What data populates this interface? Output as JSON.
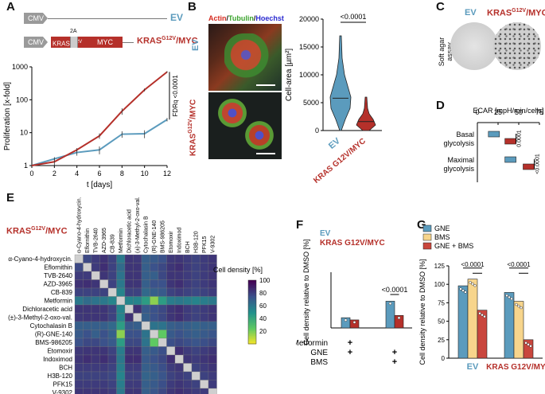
{
  "panels": {
    "a": "A",
    "b": "B",
    "c": "C",
    "d": "D",
    "e": "E",
    "f": "F",
    "g": "G"
  },
  "colors": {
    "ev": "#5b9bbd",
    "kras": "#b5302a",
    "bms": "#f7d58c",
    "gne_bms": "#c9463d",
    "gne": "#5b9bbd"
  },
  "construct": {
    "cmv": "CMV",
    "ev": "EV",
    "kras": "KRAS",
    "kras_sup": "G12V",
    "t2a": "2A",
    "myc": "MYC",
    "kras_myc_label_a": "KRAS",
    "kras_myc_sup": "G12V",
    "kras_myc_label_b": "/MYC"
  },
  "microscopy": {
    "stain_actin": "Actin",
    "stain_tubulin": "Tubulin",
    "stain_hoechst": "Hoechst",
    "ev": "EV",
    "kras_a": "KRAS",
    "kras_sup": "G12V",
    "kras_b": "/MYC"
  },
  "soft_agar": {
    "ev": "EV",
    "kras_a": "KRAS",
    "kras_sup": "G12V",
    "kras_b": "/MYC",
    "side_label": "Soft agar assay"
  },
  "heatmap_title": {
    "a": "KRAS",
    "sup": "G12V",
    "b": "/MYC"
  },
  "chart_data": [
    {
      "id": "A",
      "type": "line",
      "xlabel": "t [days]",
      "ylabel": "Proliferation [x-fold]",
      "yscale": "log",
      "xlim": [
        0,
        12
      ],
      "ylim": [
        1,
        1000
      ],
      "xticks": [
        0,
        2,
        4,
        6,
        8,
        10,
        12
      ],
      "yticks": [
        1,
        10,
        100,
        1000
      ],
      "annotation": "FDRq <0.0001",
      "series": [
        {
          "name": "EV",
          "x": [
            0,
            2,
            4,
            6,
            8,
            10,
            12
          ],
          "y": [
            1,
            1.6,
            2.5,
            3,
            9,
            9.3,
            25
          ],
          "err": [
            0,
            0.2,
            0.5,
            0.8,
            2,
            2.5,
            3
          ]
        },
        {
          "name": "KRAS G12V/MYC",
          "x": [
            0,
            2,
            4,
            6,
            8,
            10,
            12
          ],
          "y": [
            1,
            1.3,
            3,
            8,
            45,
            200,
            700
          ],
          "err": [
            0,
            0.3,
            0.4,
            1.5,
            10,
            20,
            40
          ]
        }
      ]
    },
    {
      "id": "B",
      "type": "violin",
      "ylabel": "Cell-area [µm²]",
      "ylim": [
        0,
        20000
      ],
      "yticks": [
        0,
        5000,
        10000,
        15000,
        20000
      ],
      "yticklabels": [
        "0",
        "5000",
        "10000",
        "15000",
        "20000"
      ],
      "categories": [
        "EV",
        "KRAS G12V/MYC"
      ],
      "medians": [
        5800,
        1600
      ],
      "pvalue": "<0.0001"
    },
    {
      "id": "D",
      "type": "box",
      "title": "ECAR [mpH/min/cells]",
      "xlim": [
        0,
        75
      ],
      "xticks": [
        0,
        25,
        50,
        75
      ],
      "categories": [
        "Basal glycolysis",
        "Maximal glycolysis"
      ],
      "category_lines": [
        [
          "Basal",
          "glycolysis"
        ],
        [
          "Maximal",
          "glycolysis"
        ]
      ],
      "series": [
        {
          "name": "EV",
          "values": [
            20,
            40
          ]
        },
        {
          "name": "KRAS G12V/MYC",
          "values": [
            40,
            62
          ]
        }
      ],
      "pvalues": [
        "0.0001",
        "<0.0001"
      ]
    },
    {
      "id": "E",
      "type": "heatmap",
      "legend_title": "Cell density [%]",
      "scale": [
        0,
        100
      ],
      "scale_ticks": [
        20,
        40,
        60,
        80,
        100
      ],
      "labels": [
        "α-Cyano-4-hydroxycin.",
        "Eflornithin",
        "TVB-2640",
        "AZD-3965",
        "CB-839",
        "Metformin",
        "Dichloracetic acid",
        "(±)-3-Methyl-2-oxo-val.",
        "Cytochalasin B",
        "(R)-GNE-140",
        "BMS-986205",
        "Etomoxir",
        "Indoximod",
        "BCH",
        "H3B-120",
        "PFK15",
        "V-9302"
      ],
      "values": [
        [
          100,
          78,
          82,
          85,
          80,
          60,
          84,
          83,
          70,
          72,
          75,
          83,
          84,
          82,
          80,
          82,
          84
        ],
        [
          78,
          100,
          82,
          86,
          80,
          65,
          84,
          84,
          70,
          75,
          78,
          84,
          86,
          82,
          80,
          82,
          84
        ],
        [
          82,
          82,
          100,
          84,
          80,
          62,
          84,
          84,
          70,
          70,
          78,
          84,
          84,
          82,
          80,
          82,
          84
        ],
        [
          85,
          86,
          84,
          100,
          80,
          60,
          84,
          84,
          70,
          75,
          75,
          84,
          86,
          82,
          80,
          82,
          84
        ],
        [
          80,
          80,
          80,
          80,
          100,
          55,
          80,
          80,
          66,
          70,
          72,
          80,
          82,
          80,
          78,
          80,
          82
        ],
        [
          60,
          65,
          62,
          60,
          55,
          100,
          55,
          55,
          45,
          18,
          45,
          58,
          60,
          58,
          55,
          58,
          60
        ],
        [
          84,
          84,
          84,
          84,
          80,
          55,
          100,
          85,
          72,
          75,
          78,
          84,
          86,
          82,
          80,
          82,
          84
        ],
        [
          83,
          84,
          84,
          84,
          80,
          55,
          85,
          100,
          70,
          75,
          78,
          84,
          86,
          82,
          80,
          82,
          84
        ],
        [
          70,
          70,
          70,
          70,
          66,
          45,
          72,
          70,
          100,
          62,
          62,
          70,
          72,
          70,
          68,
          70,
          70
        ],
        [
          72,
          75,
          70,
          75,
          70,
          18,
          75,
          75,
          62,
          100,
          25,
          72,
          75,
          72,
          70,
          72,
          74
        ],
        [
          75,
          78,
          78,
          75,
          72,
          45,
          78,
          78,
          62,
          25,
          100,
          76,
          78,
          76,
          74,
          76,
          78
        ],
        [
          83,
          84,
          84,
          84,
          80,
          58,
          84,
          84,
          70,
          72,
          76,
          100,
          86,
          82,
          80,
          82,
          84
        ],
        [
          84,
          86,
          84,
          86,
          82,
          60,
          86,
          86,
          72,
          75,
          78,
          86,
          100,
          84,
          82,
          84,
          86
        ],
        [
          82,
          82,
          82,
          82,
          80,
          58,
          82,
          82,
          70,
          72,
          76,
          82,
          84,
          100,
          80,
          82,
          84
        ],
        [
          80,
          80,
          80,
          80,
          78,
          55,
          80,
          80,
          68,
          70,
          74,
          80,
          82,
          80,
          100,
          80,
          82
        ],
        [
          82,
          82,
          82,
          82,
          80,
          58,
          82,
          82,
          70,
          72,
          76,
          82,
          84,
          82,
          80,
          100,
          82
        ],
        [
          84,
          84,
          84,
          84,
          82,
          60,
          84,
          84,
          70,
          74,
          78,
          84,
          86,
          84,
          82,
          82,
          100
        ]
      ]
    },
    {
      "id": "F",
      "type": "bar",
      "ylabel": "Cell density relative to DMSO [%]",
      "ylim": [
        0,
        120
      ],
      "yticks": [
        0,
        25,
        50,
        75,
        100,
        125
      ],
      "series": [
        {
          "name": "EV",
          "values": [
            23,
            60
          ]
        },
        {
          "name": "KRAS G12V/MYC",
          "values": [
            18,
            28
          ]
        }
      ],
      "pvalue": "<0.0001",
      "conditions": {
        "rows": [
          "Metformin",
          "GNE",
          "BMS"
        ],
        "marks": [
          [
            "+",
            ""
          ],
          [
            "+",
            "+"
          ],
          [
            "",
            "+"
          ]
        ]
      }
    },
    {
      "id": "G",
      "type": "bar",
      "ylabel": "Cell density relative to DMSO [%]",
      "ylim": [
        0,
        125
      ],
      "yticks": [
        0,
        25,
        50,
        75,
        100,
        125
      ],
      "categories": [
        "EV",
        "KRAS G12V/MYC"
      ],
      "series": [
        {
          "name": "GNE",
          "values": [
            98,
            89
          ]
        },
        {
          "name": "BMS",
          "values": [
            107,
            77
          ]
        },
        {
          "name": "GNE + BMS",
          "values": [
            65,
            25
          ]
        }
      ],
      "pvalues": [
        "<0.0001",
        "<0.0001",
        "<0.0001",
        "<0.0001"
      ]
    }
  ]
}
